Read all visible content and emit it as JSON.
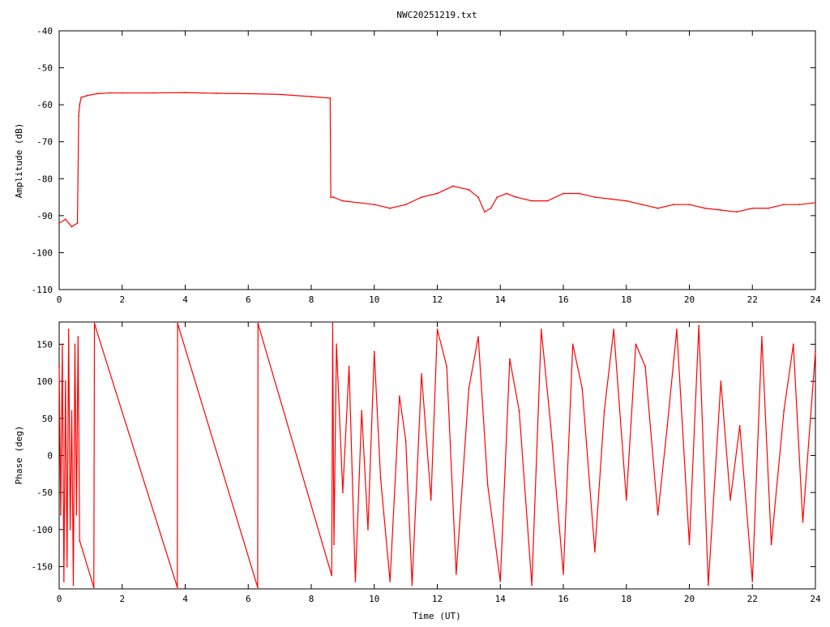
{
  "figure": {
    "title": "NWC20251219.txt",
    "line_color": "#ff0000"
  },
  "chart_data": [
    {
      "type": "line",
      "title": "NWC20251219.txt",
      "xlabel": "",
      "ylabel": "Amplitude (dB)",
      "xlim": [
        0,
        24
      ],
      "ylim": [
        -110,
        -40
      ],
      "xticks": [
        0,
        2,
        4,
        6,
        8,
        10,
        12,
        14,
        16,
        18,
        20,
        22,
        24
      ],
      "yticks": [
        -110,
        -100,
        -90,
        -80,
        -70,
        -60,
        -50,
        -40
      ],
      "grid": false,
      "series": [
        {
          "color": "#ff0000",
          "x": [
            0,
            0.2,
            0.4,
            0.58,
            0.62,
            0.65,
            0.7,
            0.9,
            1.2,
            1.6,
            2,
            3,
            4,
            5,
            6,
            7,
            8,
            8.6,
            8.62,
            8.7,
            9,
            9.5,
            10,
            10.5,
            11,
            11.5,
            12,
            12.5,
            13,
            13.3,
            13.5,
            13.7,
            13.9,
            14.2,
            14.5,
            15,
            15.5,
            16,
            16.5,
            17,
            17.5,
            18,
            18.5,
            19,
            19.5,
            20,
            20.5,
            21,
            21.5,
            22,
            22.5,
            23,
            23.5,
            24
          ],
          "y": [
            -92,
            -91,
            -93,
            -92,
            -63,
            -60,
            -58,
            -57.5,
            -57,
            -56.8,
            -56.8,
            -56.8,
            -56.7,
            -56.9,
            -57,
            -57.2,
            -57.8,
            -58.2,
            -85,
            -85,
            -86,
            -86.5,
            -87,
            -88,
            -87,
            -85,
            -84,
            -82,
            -83,
            -85,
            -89,
            -88,
            -85,
            -84,
            -85,
            -86,
            -86,
            -84,
            -84,
            -85,
            -85.5,
            -86,
            -87,
            -88,
            -87,
            -87,
            -88,
            -88.5,
            -89,
            -88,
            -88,
            -87,
            -87,
            -86.5
          ]
        }
      ]
    },
    {
      "type": "line",
      "title": "",
      "xlabel": "Time (UT)",
      "ylabel": "Phase (deg)",
      "xlim": [
        0,
        24
      ],
      "ylim": [
        -180,
        180
      ],
      "xticks": [
        0,
        2,
        4,
        6,
        8,
        10,
        12,
        14,
        16,
        18,
        20,
        22,
        24
      ],
      "yticks": [
        -150,
        -100,
        -50,
        0,
        50,
        100,
        150
      ],
      "grid": false,
      "series": [
        {
          "color": "#ff0000",
          "x": [
            0,
            0.05,
            0.1,
            0.15,
            0.2,
            0.25,
            0.3,
            0.35,
            0.4,
            0.45,
            0.5,
            0.55,
            0.6,
            0.65,
            1.1,
            1.12,
            1.14,
            3.75,
            3.76,
            3.78,
            6.3,
            6.31,
            6.33,
            8.65,
            8.68,
            8.72,
            8.8,
            9.0,
            9.2,
            9.4,
            9.6,
            9.8,
            10.0,
            10.2,
            10.5,
            10.8,
            11.0,
            11.2,
            11.5,
            11.8,
            12.0,
            12.3,
            12.6,
            13.0,
            13.3,
            13.6,
            14.0,
            14.3,
            14.6,
            15.0,
            15.3,
            15.6,
            16.0,
            16.3,
            16.6,
            17.0,
            17.3,
            17.6,
            18.0,
            18.3,
            18.6,
            19.0,
            19.3,
            19.6,
            20.0,
            20.3,
            20.6,
            21.0,
            21.3,
            21.6,
            22.0,
            22.3,
            22.6,
            23.0,
            23.3,
            23.6,
            24.0
          ],
          "y": [
            120,
            -80,
            150,
            -170,
            100,
            -150,
            170,
            -100,
            60,
            -175,
            150,
            -80,
            160,
            -115,
            -178,
            178,
            175,
            -178,
            178,
            175,
            -178,
            178,
            175,
            -162,
            178,
            -120,
            150,
            -50,
            120,
            -170,
            60,
            -100,
            140,
            -30,
            -170,
            80,
            20,
            -175,
            110,
            -60,
            170,
            120,
            -160,
            90,
            160,
            -40,
            -170,
            130,
            60,
            -175,
            170,
            40,
            -160,
            150,
            90,
            -130,
            60,
            170,
            -60,
            150,
            120,
            -80,
            40,
            170,
            -120,
            175,
            -175,
            100,
            -60,
            40,
            -170,
            160,
            -120,
            60,
            150,
            -90,
            140
          ]
        }
      ]
    }
  ]
}
